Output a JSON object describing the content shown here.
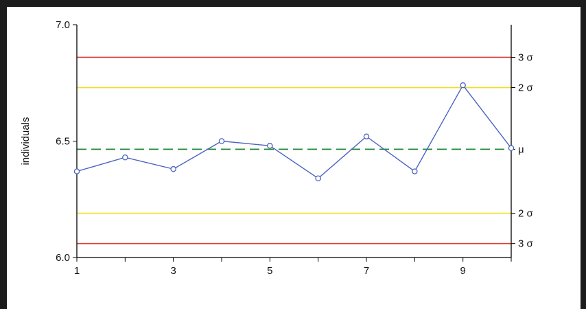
{
  "chart_data": {
    "type": "line",
    "ylabel": "individuals",
    "xlabel": "",
    "title": "",
    "xlim": [
      1,
      10
    ],
    "ylim": [
      6.0,
      7.0
    ],
    "x_ticks": [
      1,
      3,
      5,
      7,
      9
    ],
    "x_tick_labels": [
      "1",
      "3",
      "5",
      "7",
      "9"
    ],
    "y_ticks": [
      6.0,
      6.5,
      7.0
    ],
    "y_tick_labels": [
      "6.0",
      "6.5",
      "7.0"
    ],
    "series": [
      {
        "x": [
          1,
          2,
          3,
          4,
          5,
          6,
          7,
          8,
          9,
          10
        ],
        "values": [
          6.37,
          6.43,
          6.38,
          6.5,
          6.48,
          6.34,
          6.52,
          6.37,
          6.74,
          6.47
        ],
        "color": "#4a63c0",
        "marker": "circle"
      }
    ],
    "reference_lines": [
      {
        "y": 6.86,
        "label": "3 σ",
        "color": "#e03a3a",
        "style": "solid"
      },
      {
        "y": 6.73,
        "label": "2 σ",
        "color": "#f0e020",
        "style": "solid"
      },
      {
        "y": 6.465,
        "label": "μ",
        "color": "#1f8a3a",
        "style": "dashed"
      },
      {
        "y": 6.19,
        "label": "2 σ",
        "color": "#f0e020",
        "style": "solid"
      },
      {
        "y": 6.06,
        "label": "3 σ",
        "color": "#e03a3a",
        "style": "solid"
      }
    ],
    "grid": false,
    "legend": "none"
  }
}
